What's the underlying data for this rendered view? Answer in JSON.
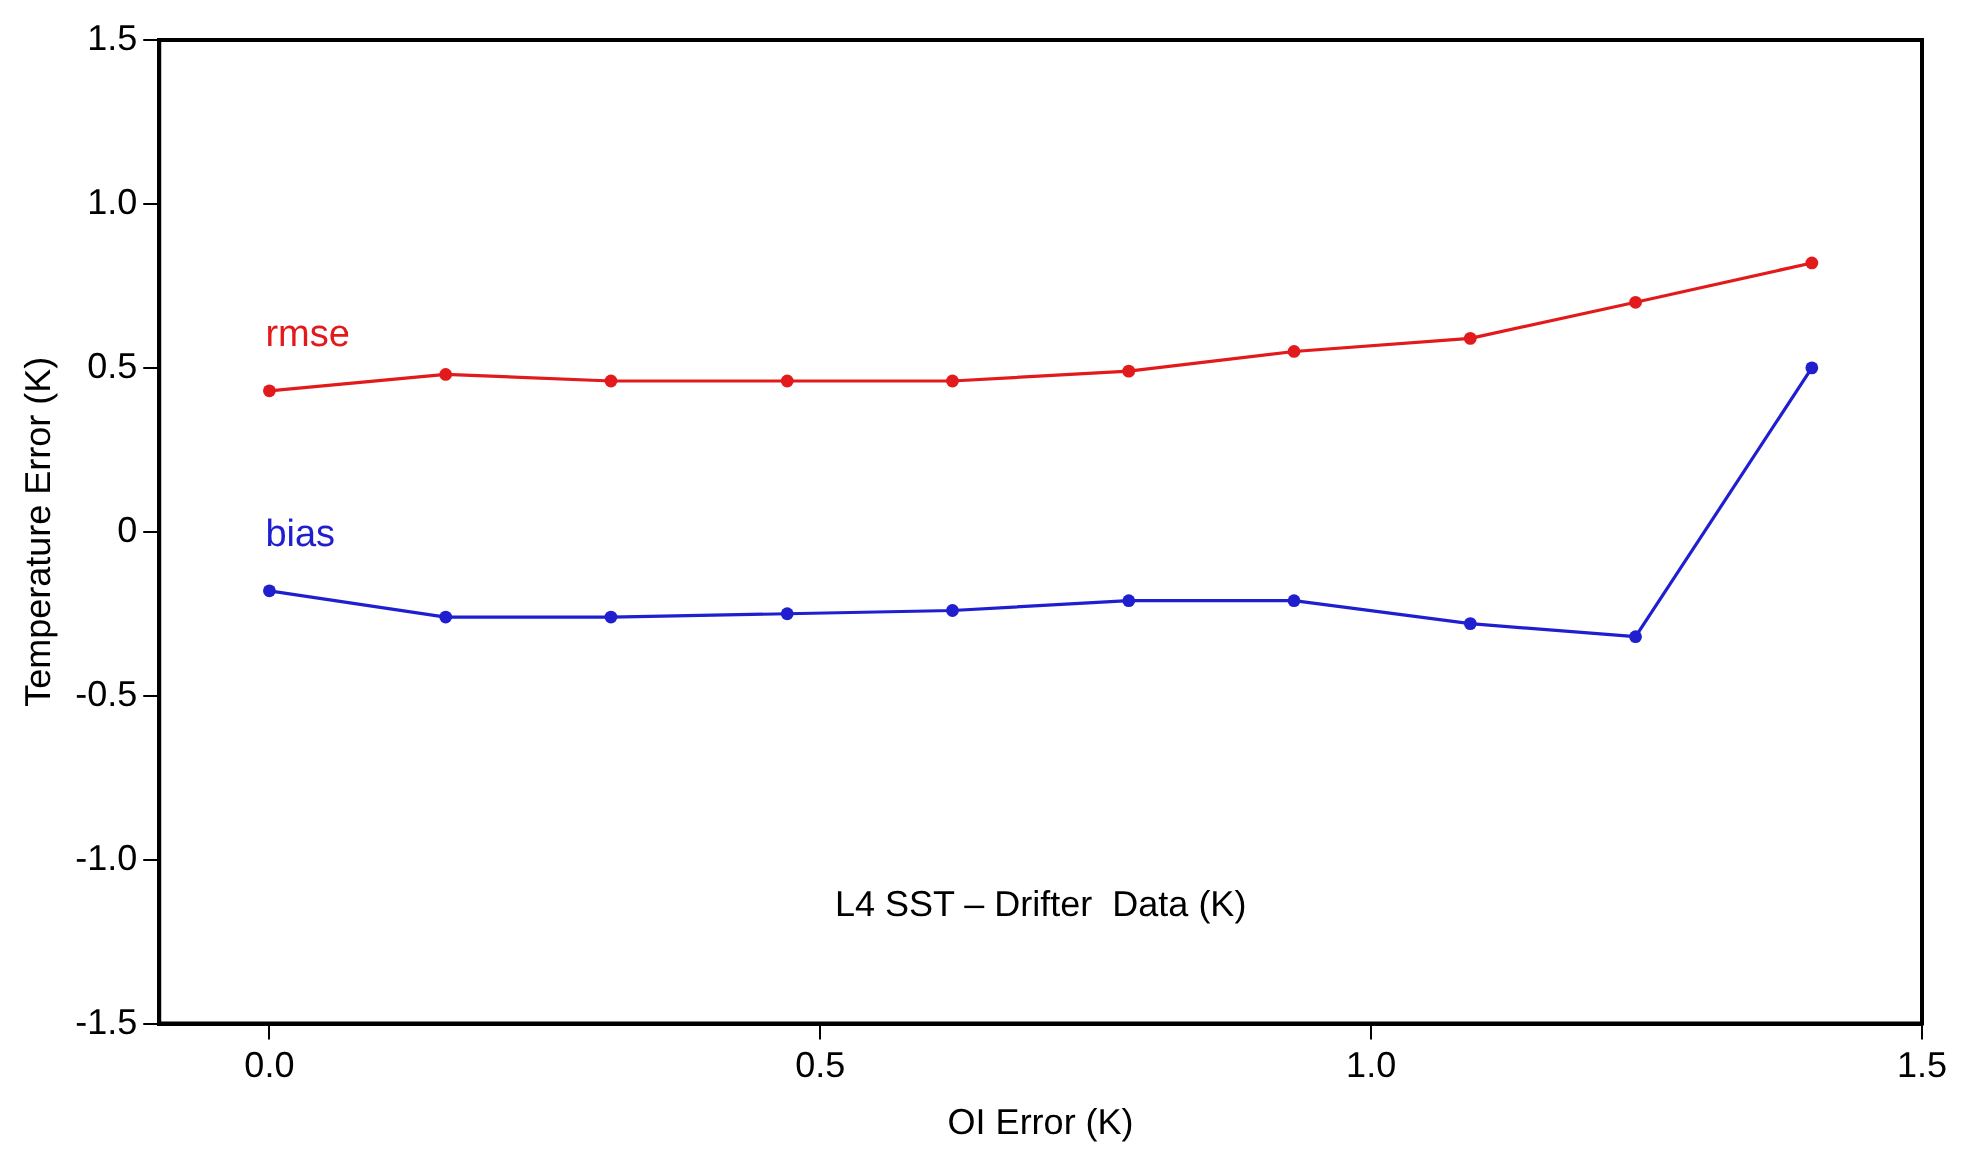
{
  "chart_data": {
    "type": "line",
    "xlabel": "OI Error (K)",
    "ylabel": "Temperature Error (K)",
    "x": [
      0,
      0.16,
      0.31,
      0.47,
      0.62,
      0.78,
      0.93,
      1.09,
      1.24,
      1.4
    ],
    "series": [
      {
        "name": "rmse",
        "color": "#e31a1c",
        "values": [
          0.43,
          0.48,
          0.46,
          0.46,
          0.46,
          0.49,
          0.55,
          0.59,
          0.7,
          0.82
        ]
      },
      {
        "name": "bias",
        "color": "#1f1fd0",
        "values": [
          -0.18,
          -0.26,
          -0.26,
          -0.25,
          -0.24,
          -0.21,
          -0.21,
          -0.28,
          -0.32,
          0.5
        ]
      }
    ],
    "xlim": [
      -0.1,
      1.5
    ],
    "xticks": [
      {
        "value": 0,
        "label": "0.0"
      },
      0.5,
      {
        "value": 1,
        "label": "1.0"
      },
      1.5
    ],
    "ylim": [
      -1.5,
      1.5
    ],
    "yticks": [
      -1.5,
      {
        "value": -1,
        "label": "-1.0"
      },
      -0.5,
      0,
      0.5,
      {
        "value": 1,
        "label": "1.0"
      },
      1.5
    ],
    "annotations": [
      "L4 SST – Drifter  Data (K)"
    ],
    "grid": false,
    "legend": false,
    "marker": "circle",
    "line_style": "solid"
  }
}
